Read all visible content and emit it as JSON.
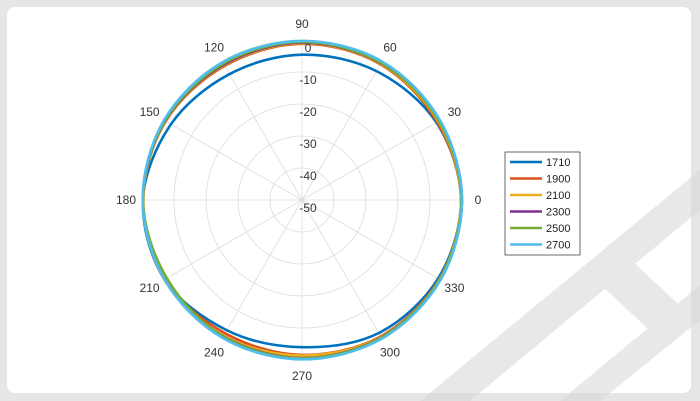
{
  "chart_data": {
    "type": "polar-line",
    "title": "",
    "angle_ticks": [
      0,
      30,
      60,
      90,
      120,
      150,
      180,
      210,
      240,
      270,
      300,
      330
    ],
    "radial_ticks": [
      0,
      -10,
      -20,
      -30,
      -40,
      -50
    ],
    "rlim": [
      -50,
      0
    ],
    "grid": true,
    "legend_position": "right",
    "series": [
      {
        "name": "1710",
        "color": "#0072BD",
        "points": [
          [
            0,
            -0.3
          ],
          [
            30,
            -1.5
          ],
          [
            60,
            -3.5
          ],
          [
            90,
            -4.6
          ],
          [
            120,
            -4.6
          ],
          [
            150,
            -2.7
          ],
          [
            180,
            -0.3
          ],
          [
            210,
            -0.4
          ],
          [
            240,
            -3.0
          ],
          [
            270,
            -4.0
          ],
          [
            300,
            -2.0
          ],
          [
            330,
            -0.9
          ]
        ]
      },
      {
        "name": "1900",
        "color": "#D95319",
        "points": [
          [
            0,
            -0.3
          ],
          [
            30,
            -1.2
          ],
          [
            60,
            -1.0
          ],
          [
            90,
            -1.2
          ],
          [
            120,
            -1.6
          ],
          [
            150,
            -0.8
          ],
          [
            180,
            -0.3
          ],
          [
            210,
            -0.4
          ],
          [
            240,
            -1.9
          ],
          [
            270,
            -1.6
          ],
          [
            300,
            -0.8
          ],
          [
            330,
            -0.5
          ]
        ]
      },
      {
        "name": "2100",
        "color": "#EDB120",
        "points": [
          [
            0,
            -0.3
          ],
          [
            30,
            -0.8
          ],
          [
            60,
            -0.8
          ],
          [
            90,
            -1.0
          ],
          [
            120,
            -1.3
          ],
          [
            150,
            -0.7
          ],
          [
            180,
            -0.4
          ],
          [
            210,
            -0.4
          ],
          [
            240,
            -1.0
          ],
          [
            270,
            -1.4
          ],
          [
            300,
            -0.6
          ],
          [
            330,
            -0.4
          ]
        ]
      },
      {
        "name": "2300",
        "color": "#7E2F8E",
        "points": [
          [
            0,
            0.0
          ],
          [
            30,
            -0.4
          ],
          [
            60,
            -0.6
          ],
          [
            90,
            -0.8
          ],
          [
            120,
            -1.1
          ],
          [
            150,
            -0.6
          ],
          [
            180,
            -0.3
          ],
          [
            210,
            -0.6
          ],
          [
            240,
            -0.8
          ],
          [
            270,
            -0.6
          ],
          [
            300,
            -0.4
          ],
          [
            330,
            -0.3
          ]
        ]
      },
      {
        "name": "2500",
        "color": "#77AC30",
        "points": [
          [
            0,
            -0.2
          ],
          [
            30,
            -0.6
          ],
          [
            60,
            -0.5
          ],
          [
            90,
            -0.6
          ],
          [
            120,
            -0.8
          ],
          [
            150,
            -0.5
          ],
          [
            180,
            -0.3
          ],
          [
            210,
            -1.2
          ],
          [
            240,
            -0.7
          ],
          [
            270,
            -0.5
          ],
          [
            300,
            -0.3
          ],
          [
            330,
            -0.3
          ]
        ]
      },
      {
        "name": "2700",
        "color": "#4DBEEE",
        "points": [
          [
            0,
            0.0
          ],
          [
            30,
            -0.2
          ],
          [
            60,
            0.0
          ],
          [
            90,
            -0.3
          ],
          [
            120,
            -0.3
          ],
          [
            150,
            -0.2
          ],
          [
            180,
            -0.2
          ],
          [
            210,
            -0.4
          ],
          [
            240,
            -0.3
          ],
          [
            270,
            -0.2
          ],
          [
            300,
            0.0
          ],
          [
            330,
            0.0
          ]
        ]
      }
    ]
  }
}
